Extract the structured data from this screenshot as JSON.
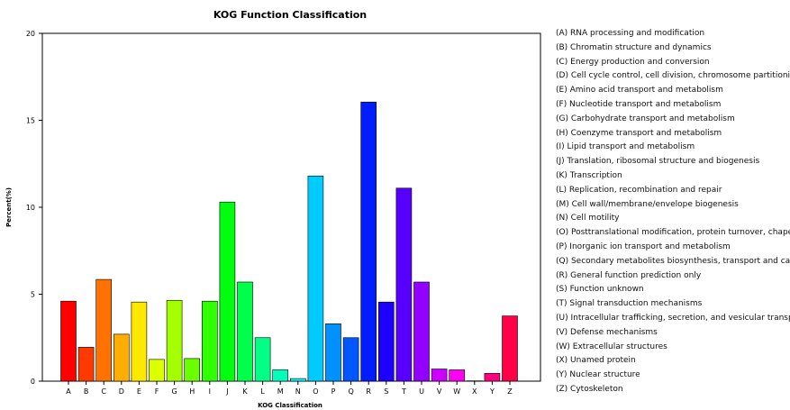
{
  "chart_data": {
    "type": "bar",
    "title": "KOG Function Classification",
    "xlabel": "KOG Classification",
    "ylabel": "Percent(%)",
    "ylim": [
      0,
      20
    ],
    "yticks": [
      "0",
      "5",
      "10",
      "15",
      "20"
    ],
    "grid": false,
    "legend_position": "right",
    "categories": [
      "A",
      "B",
      "C",
      "D",
      "E",
      "F",
      "G",
      "H",
      "I",
      "J",
      "K",
      "L",
      "M",
      "N",
      "O",
      "P",
      "Q",
      "R",
      "S",
      "T",
      "U",
      "V",
      "W",
      "X",
      "Y",
      "Z"
    ],
    "values": [
      4.6,
      1.95,
      5.85,
      2.7,
      4.55,
      1.25,
      4.65,
      1.3,
      4.6,
      10.3,
      5.7,
      2.5,
      0.65,
      0.15,
      11.8,
      3.3,
      2.5,
      16.05,
      4.55,
      11.1,
      5.7,
      0.7,
      0.65,
      0.02,
      0.45,
      3.75
    ],
    "colors": [
      "#ff0000",
      "#ff3a00",
      "#ff7200",
      "#ffae00",
      "#ffe800",
      "#dcff00",
      "#a3ff00",
      "#6aff00",
      "#2fff00",
      "#00ff0f",
      "#00ff4a",
      "#00ff84",
      "#00ffbd",
      "#00fff8",
      "#00cbff",
      "#0090ff",
      "#0057ff",
      "#001dff",
      "#1e00ff",
      "#5800ff",
      "#9200ff",
      "#cc00ff",
      "#ff00f5",
      "#ff00bb",
      "#ff0082",
      "#ff0047"
    ],
    "legend": [
      "(A) RNA processing and modification",
      "(B) Chromatin structure and dynamics",
      "(C) Energy production and conversion",
      "(D) Cell cycle control, cell division, chromosome partitioning",
      "(E) Amino acid transport and metabolism",
      "(F) Nucleotide transport and metabolism",
      "(G) Carbohydrate transport and metabolism",
      "(H) Coenzyme transport and metabolism",
      "(I) Lipid transport and metabolism",
      "(J) Translation, ribosomal structure and biogenesis",
      "(K) Transcription",
      "(L) Replication, recombination and repair",
      "(M) Cell wall/membrane/envelope biogenesis",
      "(N) Cell motility",
      "(O) Posttranslational modification, protein turnover, chaperones",
      "(P) Inorganic ion transport and metabolism",
      "(Q) Secondary metabolites biosynthesis, transport and catabolism",
      "(R) General function prediction only",
      "(S) Function unknown",
      "(T) Signal transduction mechanisms",
      "(U) Intracellular trafficking, secretion, and vesicular transport",
      "(V) Defense mechanisms",
      "(W) Extracellular structures",
      "(X) Unamed protein",
      "(Y) Nuclear structure",
      "(Z) Cytoskeleton"
    ]
  }
}
